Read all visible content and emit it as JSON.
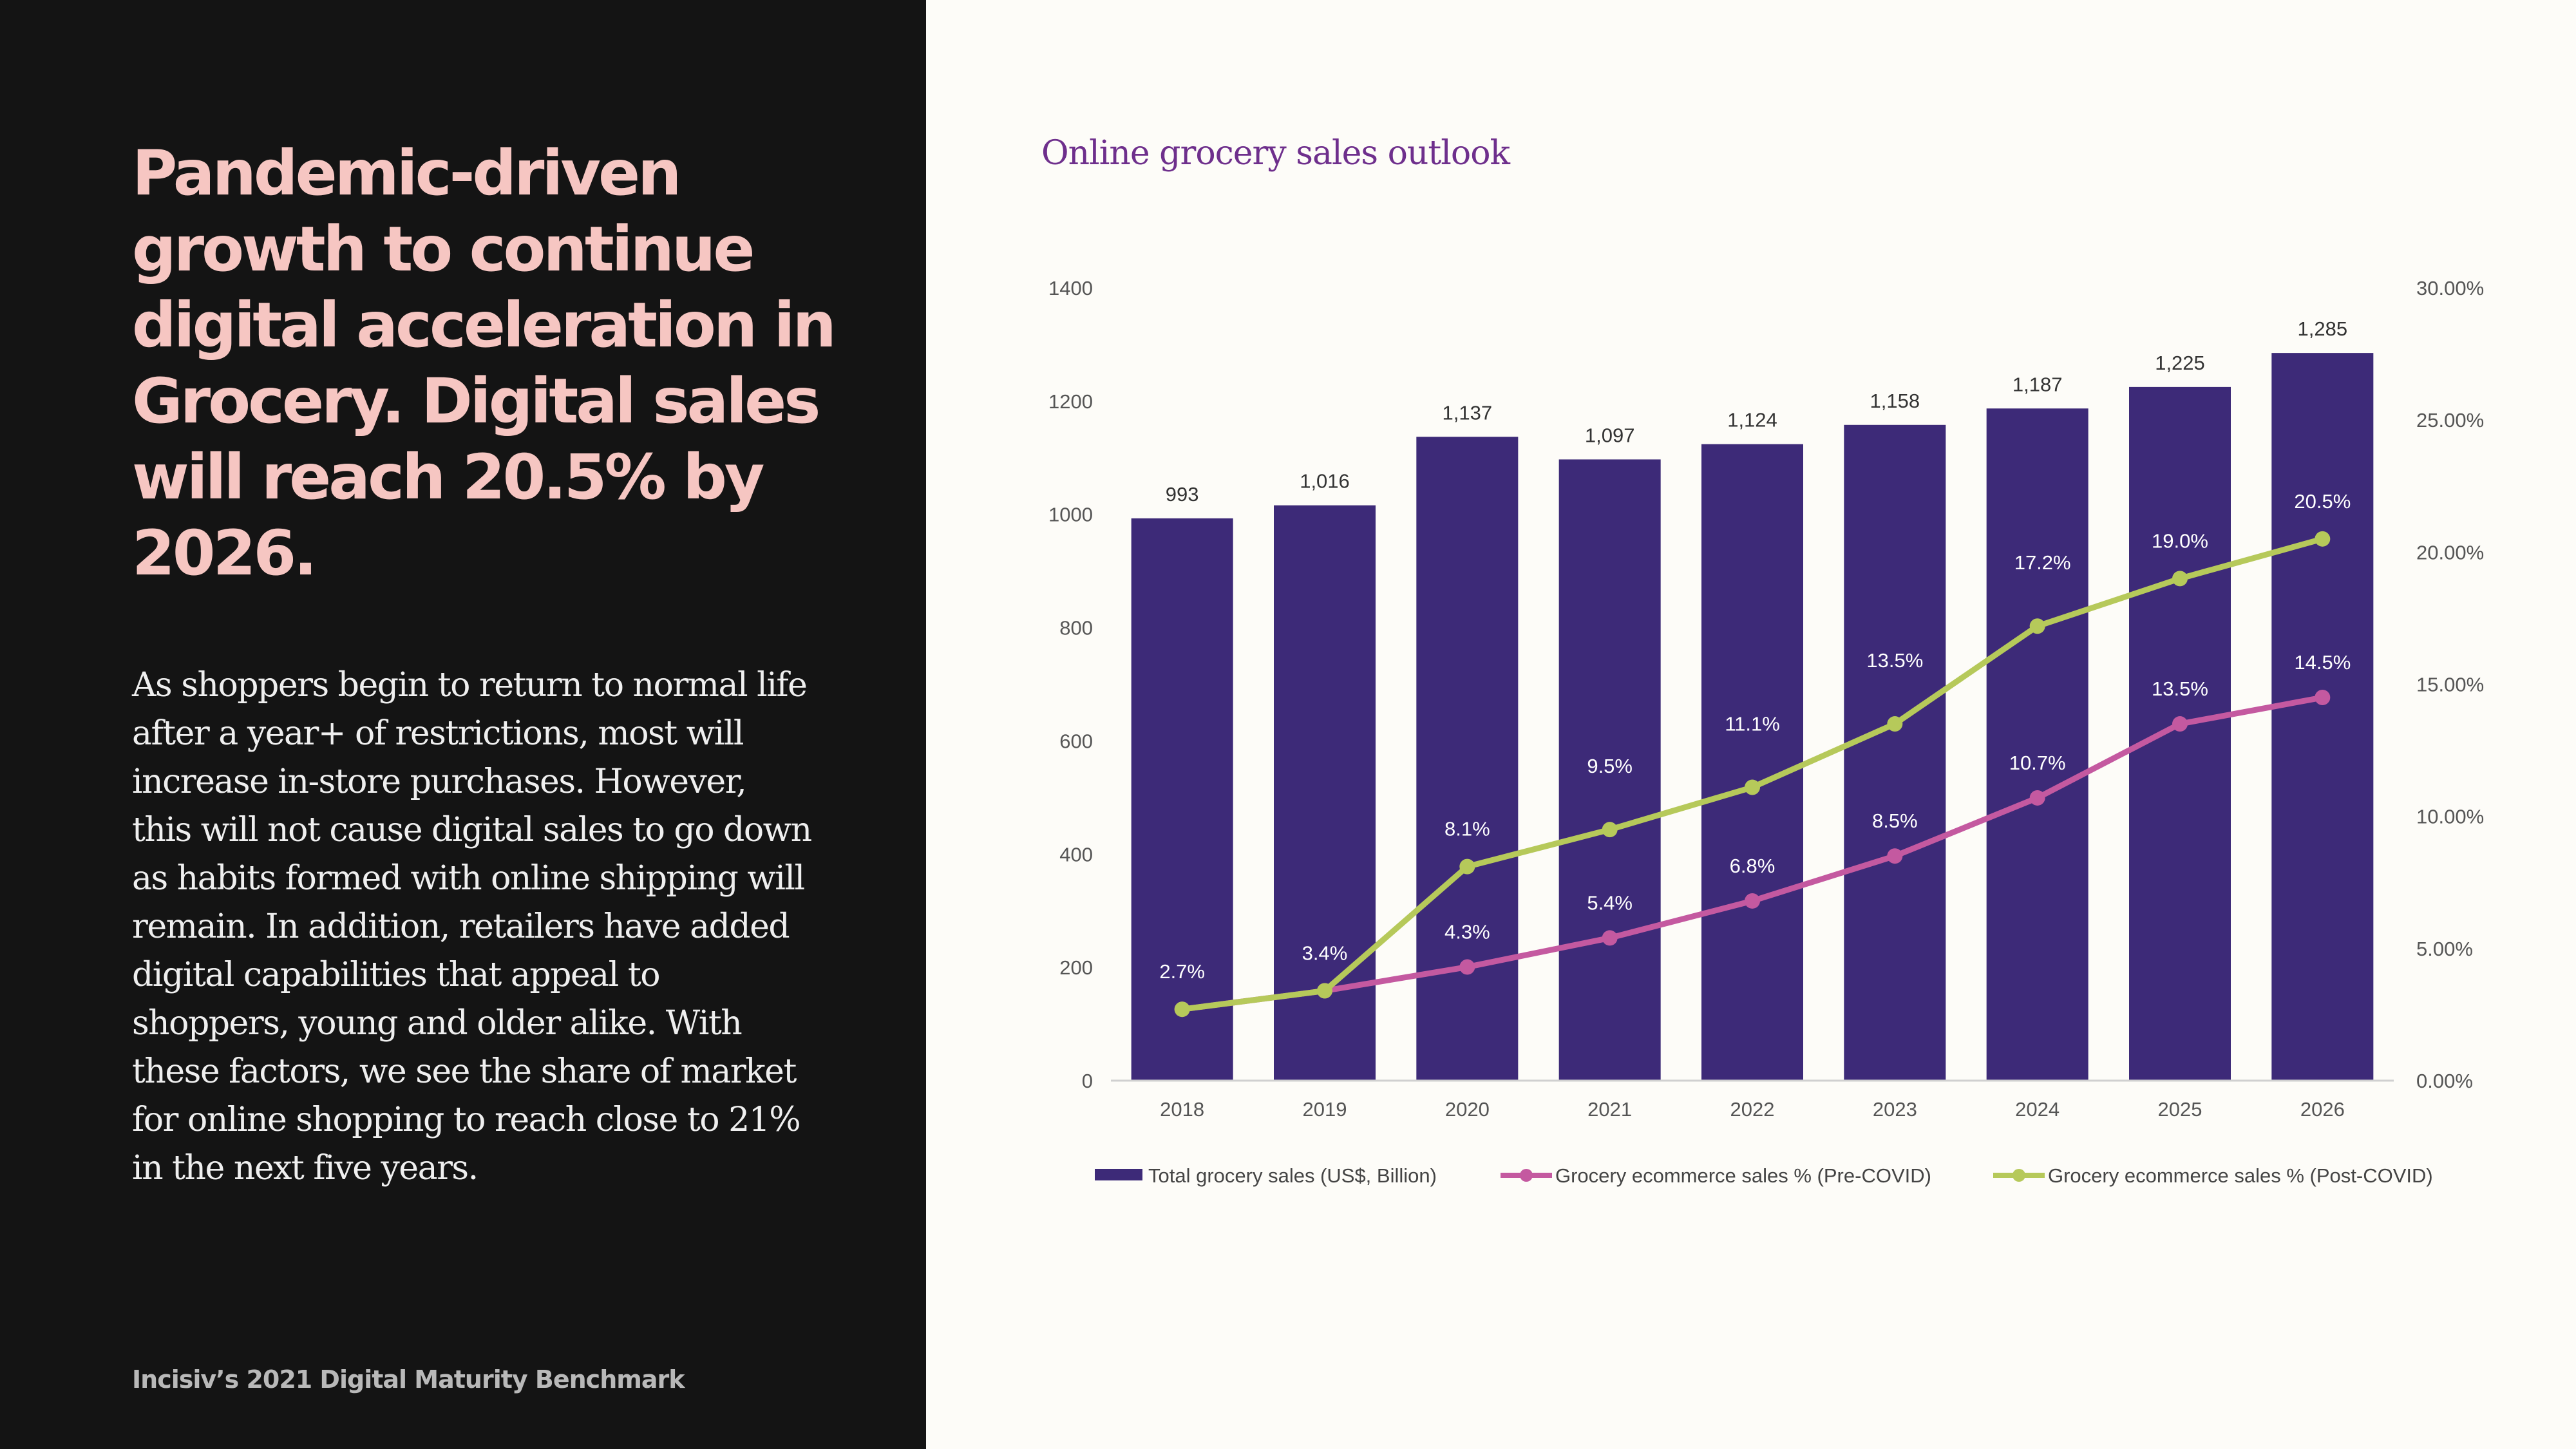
{
  "left": {
    "headline": "Pandemic-driven\ngrowth to continue\ndigital acceleration in\nGrocery. Digital sales\nwill reach 20.5% by\n2026.",
    "body": "As shoppers begin to return to normal life\nafter a year+ of restrictions, most will\nincrease in-store purchases. However,\nthis will not cause digital sales to go down\nas habits formed with online shipping will\nremain. In addition, retailers have added\ndigital capabilities that appeal to\nshoppers, young and older alike. With\nthese factors, we see the share of market\nfor online shopping to reach close to 21%\nin the next five years.",
    "footer": "Incisiv’s 2021 Digital Maturity Benchmark"
  },
  "colors": {
    "left_background": "#141414",
    "headline": "#f6c6c2",
    "bar": "#3d2a78",
    "pre_covid_line": "#c459a0",
    "post_covid_line": "#b6c95a",
    "chart_title": "#6e2f8c"
  },
  "chart_data": {
    "type": "bar",
    "title": "Online grocery sales outlook",
    "categories": [
      "2018",
      "2019",
      "2020",
      "2021",
      "2022",
      "2023",
      "2024",
      "2025",
      "2026"
    ],
    "y_left": {
      "min": 0,
      "max": 1400,
      "ticks": [
        "0",
        "200",
        "400",
        "600",
        "800",
        "1000",
        "1200",
        "1400"
      ]
    },
    "y_right": {
      "min": 0,
      "max": 0.3,
      "ticks": [
        "0.00%",
        "5.00%",
        "10.00%",
        "15.00%",
        "20.00%",
        "25.00%",
        "30.00%"
      ]
    },
    "series": [
      {
        "name": "Total grocery sales (US$, Billion)",
        "type": "bar",
        "axis": "left",
        "values": [
          993,
          1016,
          1137,
          1097,
          1124,
          1158,
          1187,
          1225,
          1285
        ],
        "labels": [
          "993",
          "1,016",
          "1,137",
          "1,097",
          "1,124",
          "1,158",
          "1,187",
          "1,225",
          "1,285"
        ]
      },
      {
        "name": "Grocery ecommerce sales % (Pre-COVID)",
        "type": "line",
        "axis": "right",
        "values": [
          0.027,
          0.034,
          0.043,
          0.054,
          0.068,
          0.085,
          0.107,
          0.135,
          0.145
        ],
        "labels": [
          "",
          "",
          "4.3%",
          "5.4%",
          "6.8%",
          "8.5%",
          "10.7%",
          "13.5%",
          "14.5%"
        ]
      },
      {
        "name": "Grocery ecommerce sales % (Post-COVID)",
        "type": "line",
        "axis": "right",
        "values": [
          0.027,
          0.034,
          0.081,
          0.095,
          0.111,
          0.135,
          0.172,
          0.19,
          0.205
        ],
        "labels": [
          "2.7%",
          "3.4%",
          "8.1%",
          "9.5%",
          "11.1%",
          "13.5%",
          "17.2%",
          "19.0%",
          "20.5%"
        ]
      }
    ],
    "legend_position": "bottom",
    "grid": false
  }
}
